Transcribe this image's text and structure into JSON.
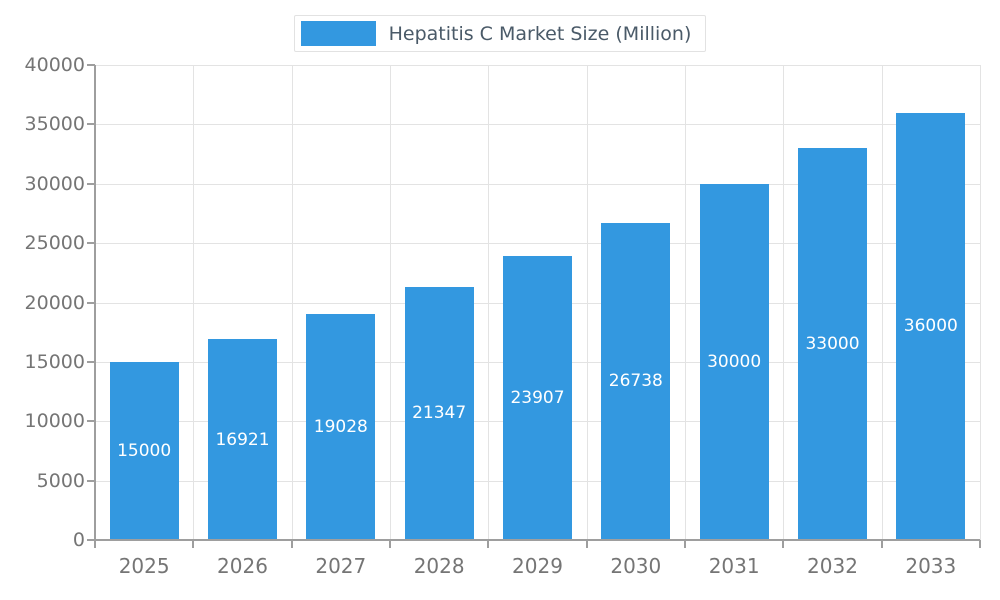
{
  "chart_data": {
    "type": "bar",
    "title": "Hepatitis C Market Size (Million)",
    "categories": [
      "2025",
      "2026",
      "2027",
      "2028",
      "2029",
      "2030",
      "2031",
      "2032",
      "2033"
    ],
    "values": [
      15000,
      16921,
      19028,
      21347,
      23907,
      26738,
      30000,
      33000,
      36000
    ],
    "yticks": [
      0,
      5000,
      10000,
      15000,
      20000,
      25000,
      30000,
      35000,
      40000
    ],
    "ylim": [
      0,
      40000
    ],
    "xlabel": "",
    "ylabel": "",
    "grid": true,
    "legend_position": "top",
    "value_labels": "inside-center",
    "colors": {
      "bar": "#3398e0",
      "value_label": "#ffffff",
      "axis_text": "#757575",
      "title_text": "#4a5a68",
      "gridline": "#e3e3e3",
      "axis_line": "#9e9e9e",
      "background": "#ffffff"
    }
  }
}
